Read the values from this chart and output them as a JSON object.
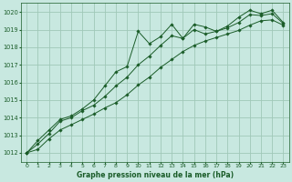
{
  "background_color": "#c8e8e0",
  "plot_bg_color": "#c8e8e0",
  "grid_color": "#a0c8b8",
  "line_color": "#1a5c28",
  "marker_color": "#1a5c28",
  "xlabel": "Graphe pression niveau de la mer (hPa)",
  "ylim": [
    1011.5,
    1020.5
  ],
  "xlim": [
    -0.5,
    23.5
  ],
  "yticks": [
    1012,
    1013,
    1014,
    1015,
    1016,
    1017,
    1018,
    1019,
    1020
  ],
  "xticks": [
    0,
    1,
    2,
    3,
    4,
    5,
    6,
    7,
    8,
    9,
    10,
    11,
    12,
    13,
    14,
    15,
    16,
    17,
    18,
    19,
    20,
    21,
    22,
    23
  ],
  "series": [
    [
      1012.0,
      1012.7,
      1013.3,
      1013.9,
      1014.1,
      1014.5,
      1015.0,
      1015.8,
      1016.6,
      1016.9,
      1018.9,
      1018.2,
      1018.6,
      1019.3,
      1018.5,
      1019.3,
      1019.15,
      1018.9,
      1019.2,
      1019.7,
      1020.1,
      1019.9,
      1020.1,
      1019.4
    ],
    [
      1012.0,
      1012.5,
      1013.1,
      1013.8,
      1014.0,
      1014.4,
      1014.7,
      1015.2,
      1015.8,
      1016.3,
      1017.0,
      1017.5,
      1018.1,
      1018.65,
      1018.5,
      1019.0,
      1018.75,
      1018.9,
      1019.1,
      1019.4,
      1019.85,
      1019.8,
      1019.9,
      1019.35
    ],
    [
      1012.0,
      1012.2,
      1012.8,
      1013.3,
      1013.6,
      1013.9,
      1014.2,
      1014.55,
      1014.85,
      1015.3,
      1015.85,
      1016.3,
      1016.85,
      1017.3,
      1017.75,
      1018.1,
      1018.35,
      1018.55,
      1018.75,
      1018.95,
      1019.25,
      1019.5,
      1019.55,
      1019.25
    ]
  ]
}
